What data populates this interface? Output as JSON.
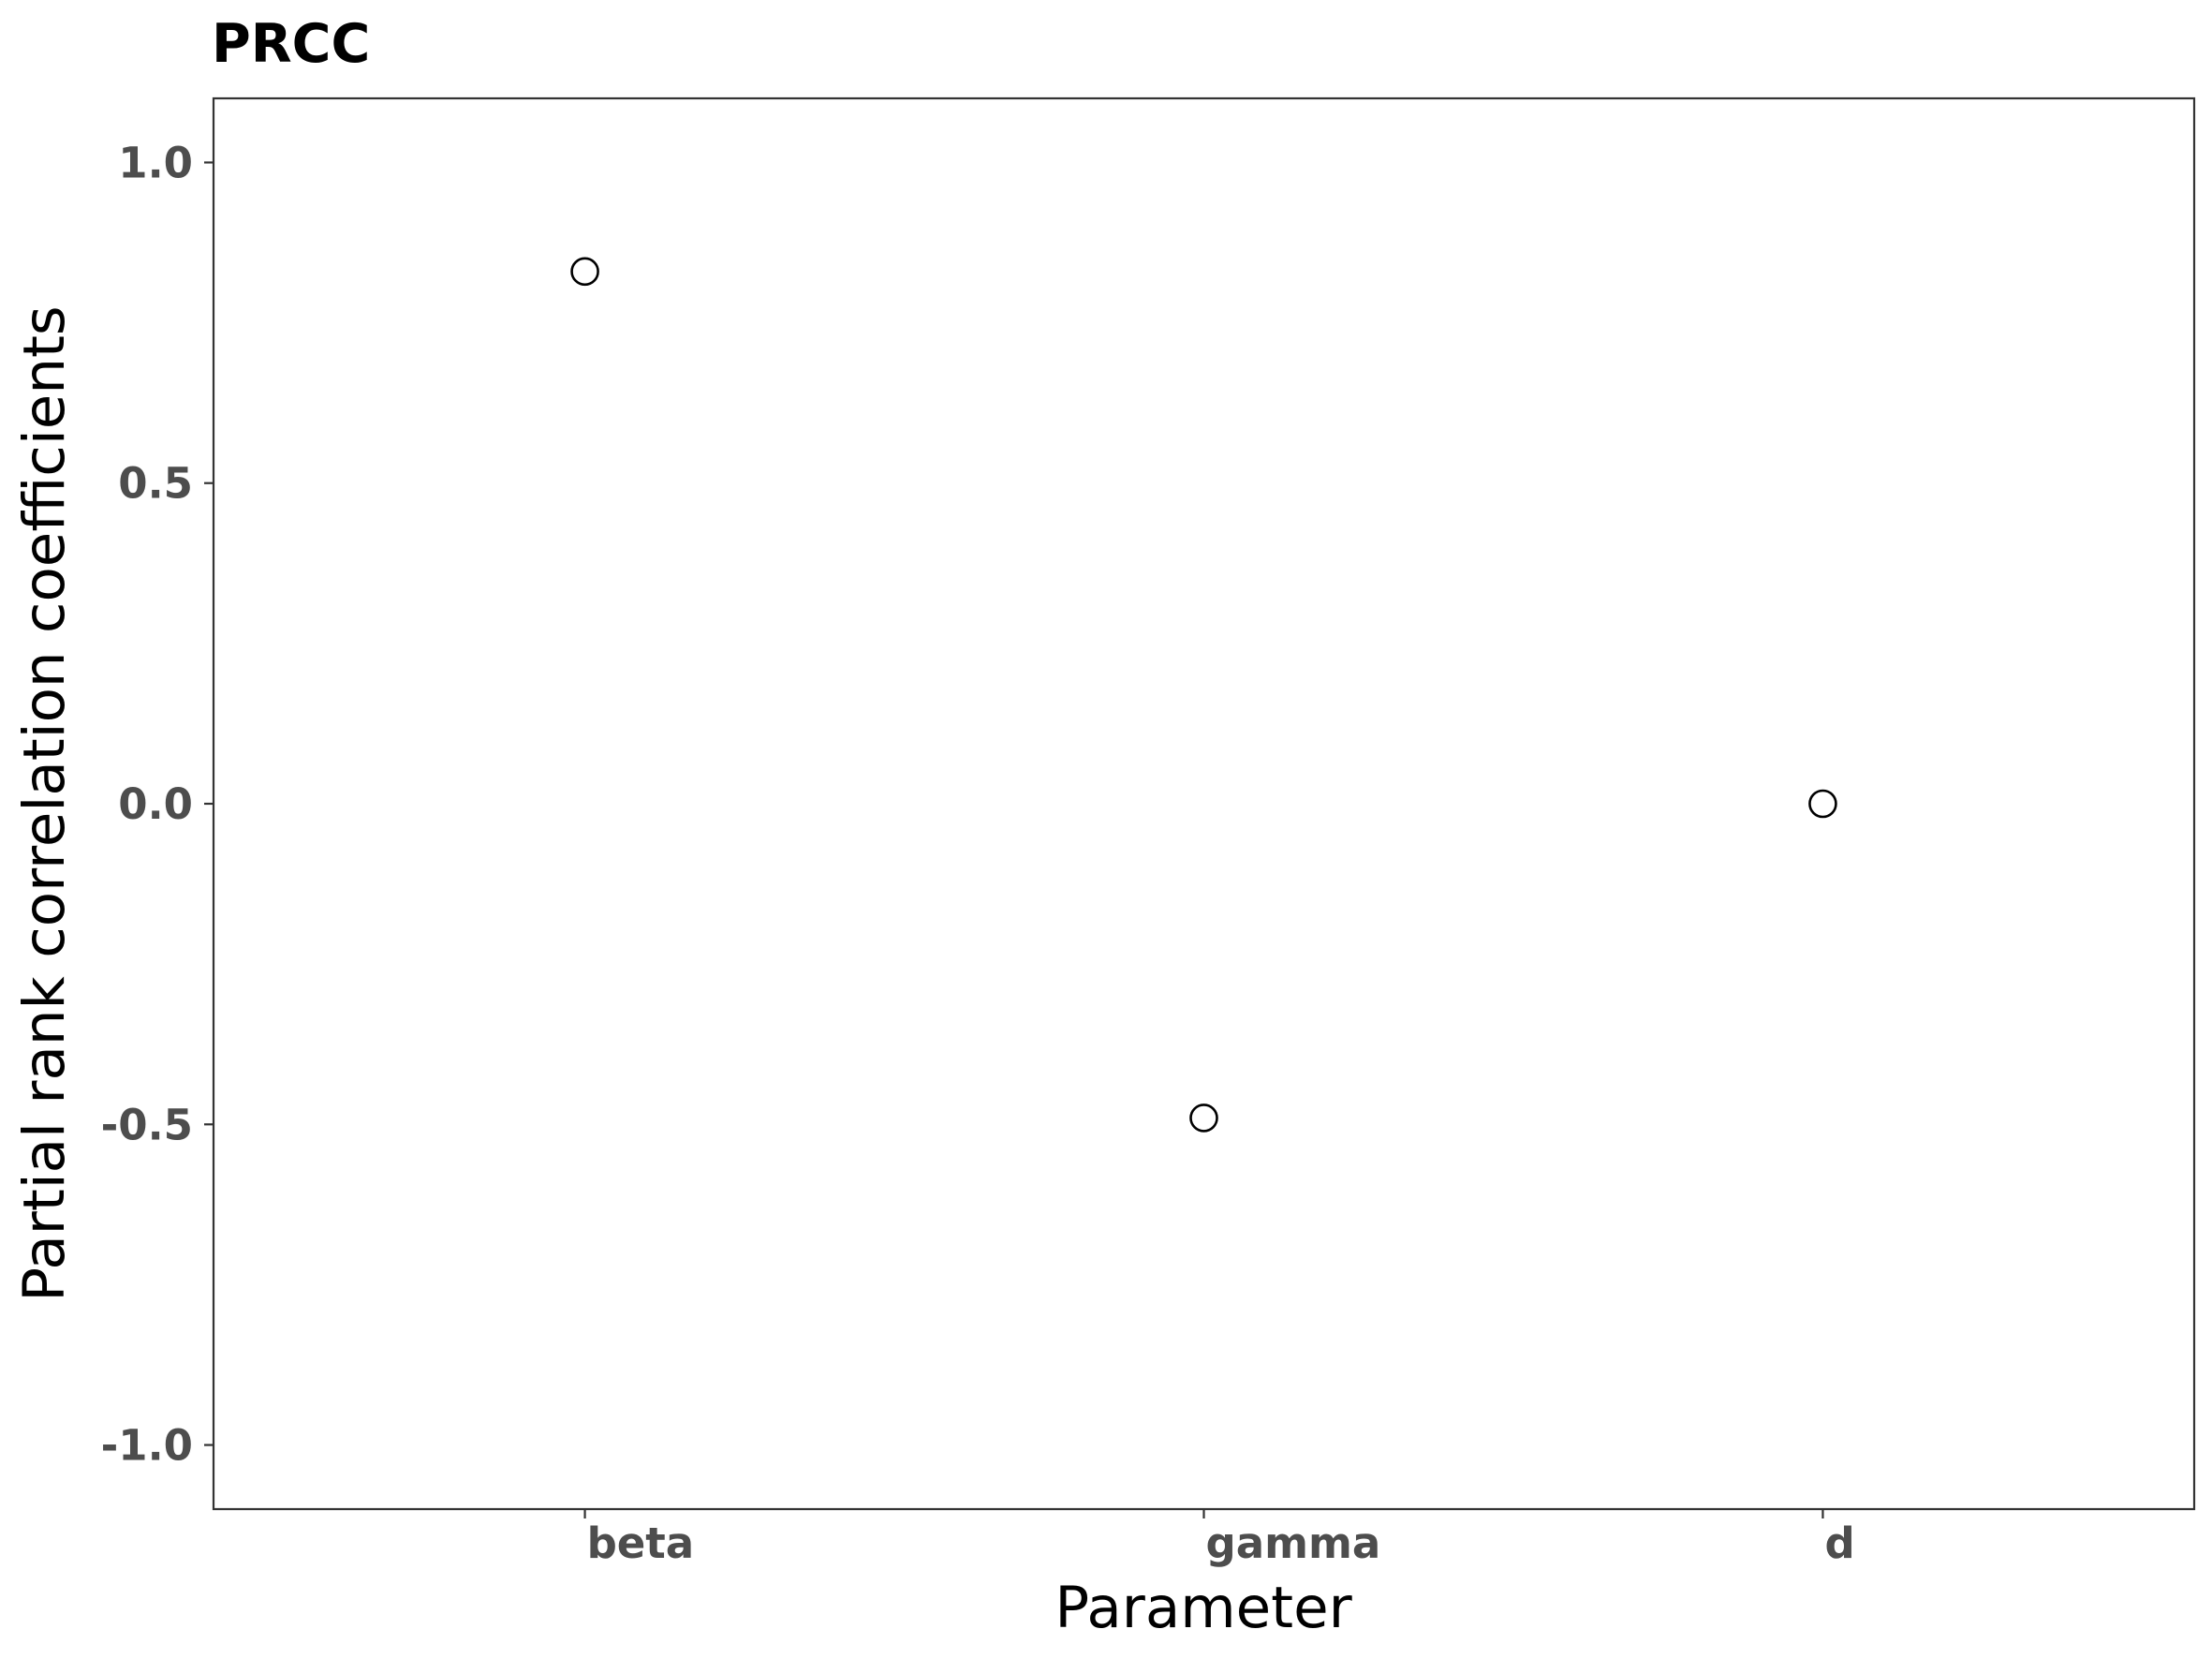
{
  "chart_data": {
    "type": "scatter",
    "title": "PRCC",
    "xlabel": "Parameter",
    "ylabel": "Partial rank correlation coefficients",
    "categories": [
      "beta",
      "gamma",
      "d"
    ],
    "values": [
      0.83,
      -0.49,
      0.0
    ],
    "ylim": [
      -1.1,
      1.1
    ],
    "yticks": [
      1.0,
      0.5,
      0.0,
      -0.5,
      -1.0
    ],
    "ytick_labels": [
      "1.0",
      "0.5",
      "0.0",
      "-0.5",
      "-1.0"
    ],
    "grid": false,
    "legend": "none",
    "marker": "open-circle",
    "colors": {
      "marker_stroke": "#000000",
      "marker_fill": "#ffffff",
      "tick_text": "#4d4d4d",
      "frame": "#333333"
    }
  }
}
